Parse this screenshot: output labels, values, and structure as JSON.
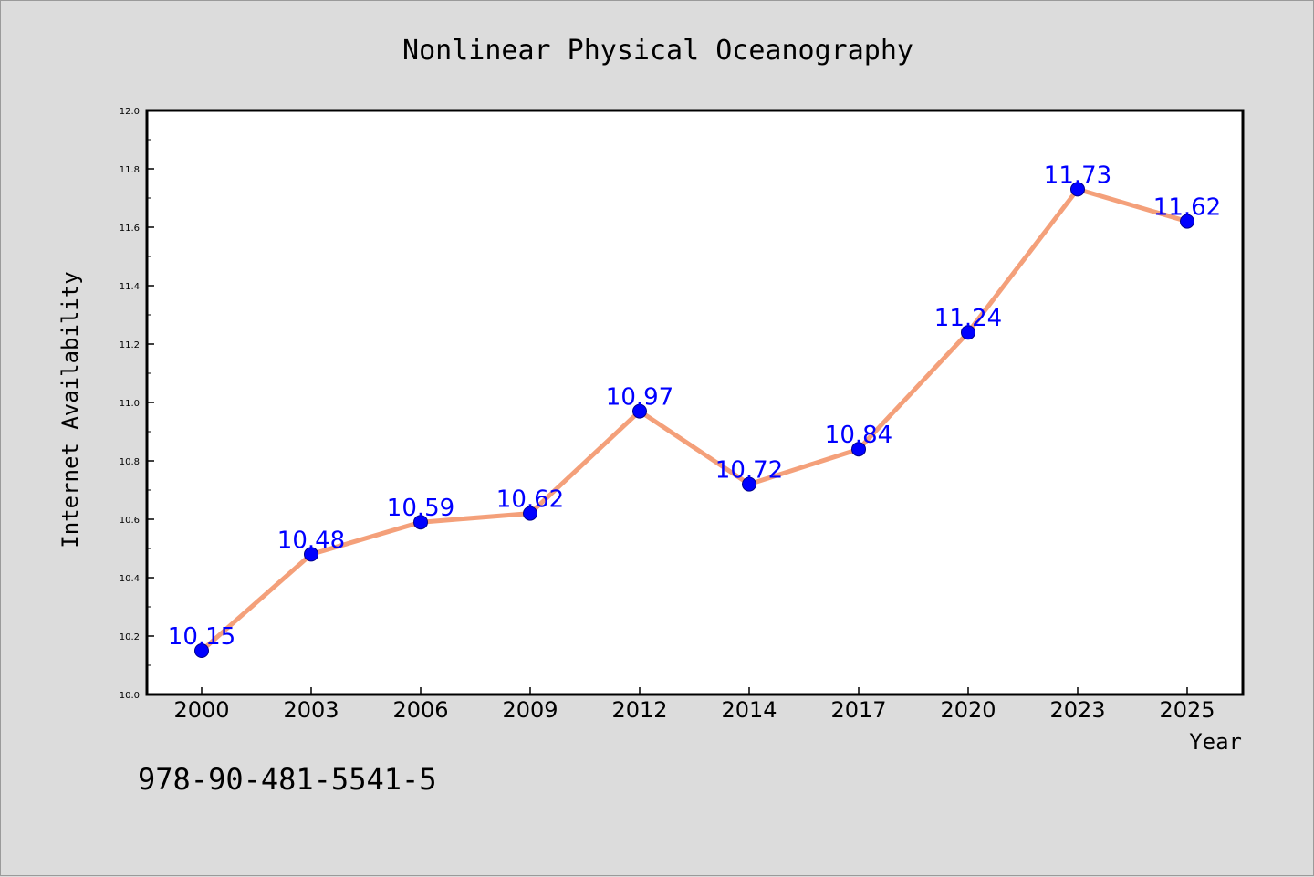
{
  "chart_data": {
    "type": "line",
    "title": "Nonlinear Physical Oceanography",
    "xlabel": "Year",
    "ylabel": "Internet Availability",
    "categories": [
      "2000",
      "2003",
      "2006",
      "2009",
      "2012",
      "2014",
      "2017",
      "2020",
      "2023",
      "2025"
    ],
    "series": [
      {
        "values": [
          10.15,
          10.48,
          10.59,
          10.62,
          10.97,
          10.72,
          10.84,
          11.24,
          11.73,
          11.62
        ],
        "line_color": "#f4a07a",
        "marker_color": "#0000ff",
        "data_labels": [
          "10.15",
          "10.48",
          "10.59",
          "10.62",
          "10.97",
          "10.72",
          "10.84",
          "11.24",
          "11.73",
          "11.62"
        ]
      }
    ],
    "ylim": [
      10.0,
      12.0
    ],
    "yticks": [
      "10.0",
      "10.2",
      "10.4",
      "10.6",
      "10.8",
      "11.0",
      "11.2",
      "11.4",
      "11.6",
      "11.8",
      "12.0"
    ],
    "grid": false,
    "legend": "none"
  },
  "footnote": "978-90-481-5541-5",
  "colors": {
    "background": "#dcdcdc",
    "plot_background": "#ffffff",
    "data_label": "#0000ff"
  }
}
